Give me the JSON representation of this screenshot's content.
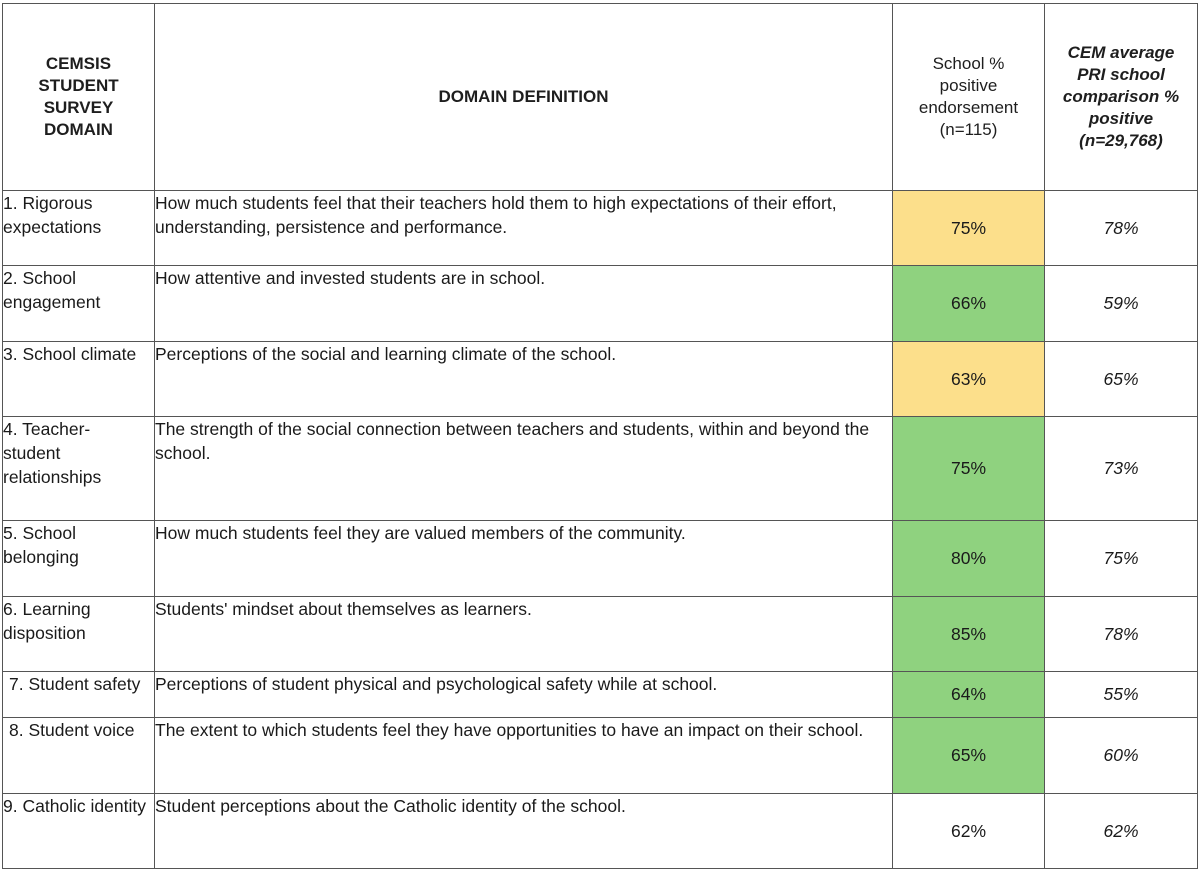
{
  "header": {
    "domain_col": "CEMSIS STUDENT SURVEY DOMAIN",
    "definition_col": "DOMAIN DEFINITION",
    "school_col": "School % positive endorsement (n=115)",
    "cem_col": "CEM average PRI school comparison % positive (n=29,768)"
  },
  "colors": {
    "yellow": "#fcdf8b",
    "green": "#8fd27f"
  },
  "rows": [
    {
      "domain": "1. Rigorous expectations",
      "definition": "How much students feel that their teachers hold them to high expectations of their effort, understanding, persistence and performance.",
      "school": "75%",
      "cem": "78%",
      "highlight": "yellow"
    },
    {
      "domain": "2. School engagement",
      "definition": "How attentive and invested students are in school.",
      "school": "66%",
      "cem": "59%",
      "highlight": "green"
    },
    {
      "domain": "3. School climate",
      "definition": "Perceptions of the social and learning climate of the school.",
      "school": "63%",
      "cem": "65%",
      "highlight": "yellow"
    },
    {
      "domain": "4. Teacher-student relationships",
      "definition": "The strength of the social connection between teachers and students, within and beyond the school.",
      "school": "75%",
      "cem": "73%",
      "highlight": "green"
    },
    {
      "domain": "5. School belonging",
      "definition": "How much students feel they are valued members of the community.",
      "school": "80%",
      "cem": "75%",
      "highlight": "green"
    },
    {
      "domain": "6. Learning disposition",
      "definition": "Students' mindset about themselves as learners.",
      "school": "85%",
      "cem": "78%",
      "highlight": "green"
    },
    {
      "domain": "7. Student safety",
      "definition": "Perceptions of student physical and psychological safety while at school.",
      "school": "64%",
      "cem": "55%",
      "highlight": "green"
    },
    {
      "domain": "8. Student voice",
      "definition": "The extent to which students feel they have opportunities to have an impact on their school.",
      "school": "65%",
      "cem": "60%",
      "highlight": "green"
    },
    {
      "domain": "9. Catholic identity",
      "definition": "Student perceptions about the Catholic identity of the school.",
      "school": "62%",
      "cem": "62%",
      "highlight": "none"
    }
  ]
}
